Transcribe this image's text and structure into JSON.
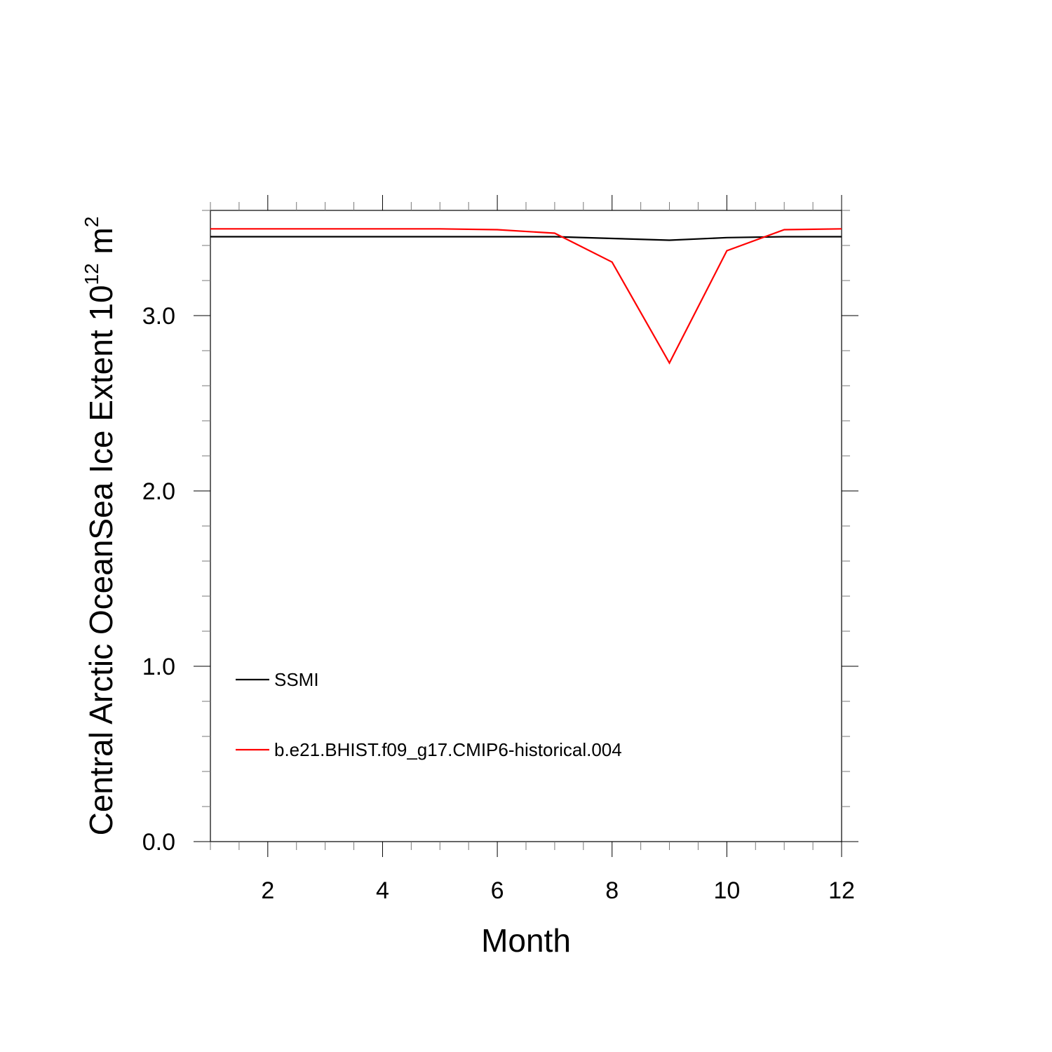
{
  "chart_data": {
    "type": "line",
    "xlabel": "Month",
    "ylabel_main": "Central Arctic OceanSea Ice Extent 10",
    "ylabel_sup1": "12",
    "ylabel_mid": " m",
    "ylabel_sup2": "2",
    "xlim": [
      1,
      12
    ],
    "ylim": [
      0,
      3.6
    ],
    "x_ticks": [
      2,
      4,
      6,
      8,
      10,
      12
    ],
    "x_tick_labels": [
      "2",
      "4",
      "6",
      "8",
      "10",
      "12"
    ],
    "y_ticks": [
      0,
      1,
      2,
      3
    ],
    "y_tick_labels": [
      "0.0",
      "1.0",
      "2.0",
      "3.0"
    ],
    "grid": false,
    "legend_position": "bottom-left",
    "series": [
      {
        "name": "SSMI",
        "color": "#000000",
        "x": [
          1,
          2,
          3,
          4,
          5,
          6,
          7,
          8,
          9,
          10,
          11,
          12
        ],
        "values": [
          3.45,
          3.45,
          3.45,
          3.45,
          3.45,
          3.45,
          3.45,
          3.44,
          3.43,
          3.445,
          3.45,
          3.45
        ]
      },
      {
        "name": "b.e21.BHIST.f09_g17.CMIP6-historical.004",
        "color": "#ff0000",
        "x": [
          1,
          2,
          3,
          4,
          5,
          6,
          7,
          8,
          9,
          10,
          11,
          12
        ],
        "values": [
          3.495,
          3.495,
          3.495,
          3.495,
          3.495,
          3.49,
          3.47,
          3.305,
          2.73,
          3.37,
          3.49,
          3.495
        ]
      }
    ]
  }
}
